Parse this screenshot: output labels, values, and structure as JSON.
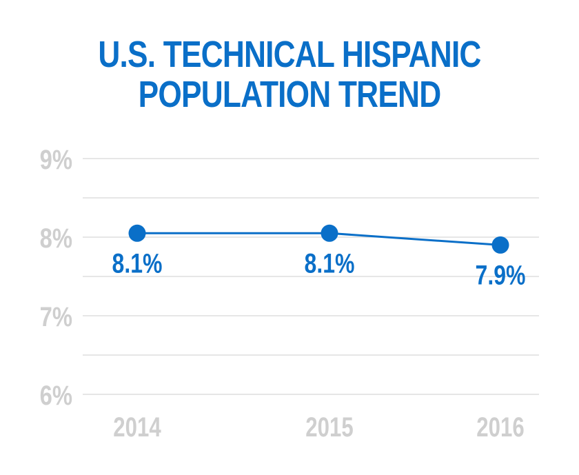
{
  "chart_data": {
    "type": "line",
    "title_lines": [
      "U.S. TECHNICAL HISPANIC",
      "POPULATION TREND"
    ],
    "categories": [
      "2014",
      "2015",
      "2016"
    ],
    "values": [
      8.05,
      8.05,
      7.9
    ],
    "data_labels": [
      "8.1%",
      "8.1%",
      "7.9%"
    ],
    "y_ticks": [
      "9%",
      "8%",
      "7%",
      "6%"
    ],
    "ylim": [
      6,
      9
    ],
    "grid": true,
    "colors": {
      "line": "#0a6fc8",
      "axis_text": "#cfcfcf",
      "grid": "#d6d6d6"
    }
  }
}
